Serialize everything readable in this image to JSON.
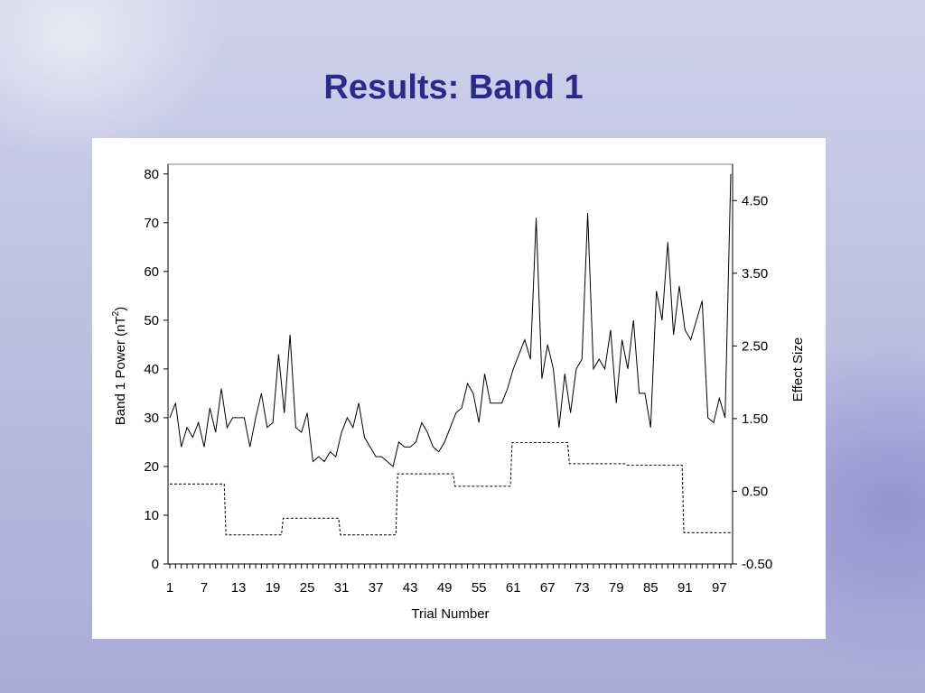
{
  "slide": {
    "title": "Results: Band 1"
  },
  "chart_data": {
    "type": "line",
    "xlabel": "Trial Number",
    "ylabel": "Band 1 Power (nT",
    "ylabel_superscript": "2",
    "ylabel_close": ")",
    "y2label": "Effect Size",
    "x": [
      1,
      2,
      3,
      4,
      5,
      6,
      7,
      8,
      9,
      10,
      11,
      12,
      13,
      14,
      15,
      16,
      17,
      18,
      19,
      20,
      21,
      22,
      23,
      24,
      25,
      26,
      27,
      28,
      29,
      30,
      31,
      32,
      33,
      34,
      35,
      36,
      37,
      38,
      39,
      40,
      41,
      42,
      43,
      44,
      45,
      46,
      47,
      48,
      49,
      50,
      51,
      52,
      53,
      54,
      55,
      56,
      57,
      58,
      59,
      60,
      61,
      62,
      63,
      64,
      65,
      66,
      67,
      68,
      69,
      70,
      71,
      72,
      73,
      74,
      75,
      76,
      77,
      78,
      79,
      80,
      81,
      82,
      83,
      84,
      85,
      86,
      87,
      88,
      89,
      90,
      91,
      92,
      93,
      94,
      95,
      96,
      97,
      98,
      99
    ],
    "xticks": [
      1,
      7,
      13,
      19,
      25,
      31,
      37,
      43,
      49,
      55,
      61,
      67,
      73,
      79,
      85,
      91,
      97
    ],
    "xlim": [
      1,
      99
    ],
    "ylim": [
      0,
      82
    ],
    "yticks": [
      0,
      10,
      20,
      30,
      40,
      50,
      60,
      70,
      80
    ],
    "y2lim": [
      -0.5,
      5.0
    ],
    "y2ticks": [
      -0.5,
      0.5,
      1.5,
      2.5,
      3.5,
      4.5
    ],
    "y2ticklabels": [
      "-0.50",
      "0.50",
      "1.50",
      "2.50",
      "3.50",
      "4.50"
    ],
    "grid": false,
    "series": [
      {
        "axis": "left",
        "style": "solid",
        "values": [
          30,
          33,
          24,
          28,
          26,
          29,
          24,
          32,
          27,
          36,
          28,
          30,
          30,
          30,
          24,
          30,
          35,
          28,
          29,
          43,
          31,
          47,
          28,
          27,
          31,
          21,
          22,
          21,
          23,
          22,
          27,
          30,
          28,
          33,
          26,
          24,
          22,
          22,
          21,
          20,
          25,
          24,
          24,
          25,
          29,
          27,
          24,
          23,
          25,
          28,
          31,
          32,
          37,
          35,
          29,
          39,
          33,
          33,
          33,
          36,
          40,
          43,
          46,
          42,
          71,
          38,
          45,
          40,
          28,
          39,
          31,
          40,
          42,
          72,
          40,
          42,
          40,
          48,
          33,
          46,
          40,
          50,
          35,
          35,
          28,
          56,
          50,
          66,
          47,
          57,
          48,
          46,
          50,
          54,
          30,
          29,
          34,
          30,
          80
        ]
      },
      {
        "axis": "right",
        "style": "dashed",
        "values": [
          0.6,
          0.6,
          0.6,
          0.6,
          0.6,
          0.6,
          0.6,
          0.6,
          0.6,
          0.6,
          -0.1,
          -0.1,
          -0.1,
          -0.1,
          -0.1,
          -0.1,
          -0.1,
          -0.1,
          -0.1,
          -0.1,
          0.13,
          0.13,
          0.13,
          0.13,
          0.13,
          0.13,
          0.13,
          0.13,
          0.13,
          0.13,
          -0.1,
          -0.1,
          -0.1,
          -0.1,
          -0.1,
          -0.1,
          -0.1,
          -0.1,
          -0.1,
          -0.1,
          0.74,
          0.74,
          0.74,
          0.74,
          0.74,
          0.74,
          0.74,
          0.74,
          0.74,
          0.74,
          0.57,
          0.57,
          0.57,
          0.57,
          0.57,
          0.57,
          0.57,
          0.57,
          0.57,
          0.57,
          1.17,
          1.17,
          1.17,
          1.17,
          1.17,
          1.17,
          1.17,
          1.17,
          1.17,
          1.17,
          0.88,
          0.88,
          0.88,
          0.88,
          0.88,
          0.88,
          0.88,
          0.88,
          0.88,
          0.88,
          0.86,
          0.86,
          0.86,
          0.86,
          0.86,
          0.86,
          0.86,
          0.86,
          0.86,
          0.86,
          -0.07,
          -0.07,
          -0.07,
          -0.07,
          -0.07,
          -0.07,
          -0.07,
          -0.07,
          -0.07
        ]
      }
    ]
  }
}
